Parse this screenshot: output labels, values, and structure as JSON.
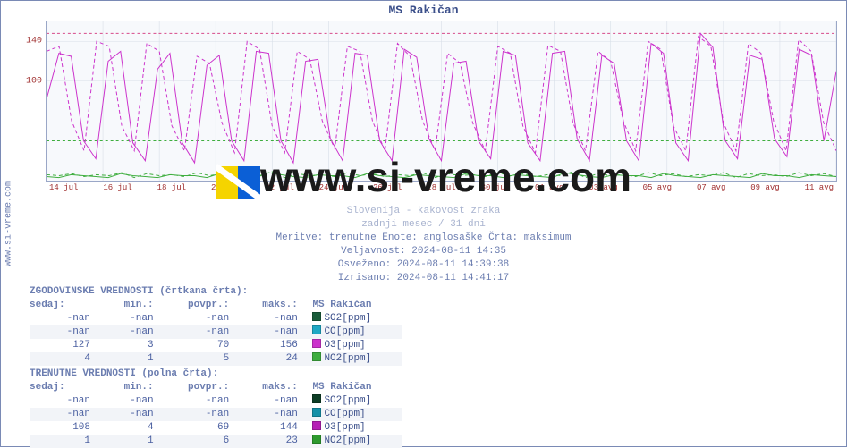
{
  "chart": {
    "title": "MS Rakičan",
    "type": "line",
    "background_color": "#f7f9fc",
    "grid_color": "#d8dee8",
    "border_color": "#9aa7c7",
    "x_tick_color": "#a03030",
    "y_tick_color": "#a03030",
    "ylim": [
      0,
      160
    ],
    "y_ticks": [
      100,
      140
    ],
    "x_ticks": [
      "14 jul",
      "16 jul",
      "18 jul",
      "20 jul",
      "22 jul",
      "24 jul",
      "26 jul",
      "28 jul",
      "30 jul",
      "01 avg",
      "03 avg",
      "05 avg",
      "07 avg",
      "09 avg",
      "11 avg"
    ],
    "threshold_lines": [
      {
        "value": 148,
        "color": "#d74a8a",
        "dash": "3,3"
      },
      {
        "value": 40,
        "color": "#3fae3f",
        "dash": "3,3"
      }
    ],
    "series": [
      {
        "name": "O3 hist",
        "color": "#cc33cc",
        "style": "dashed",
        "line_width": 1,
        "values": [
          130,
          135,
          60,
          30,
          140,
          135,
          55,
          30,
          138,
          130,
          55,
          30,
          125,
          118,
          58,
          28,
          140,
          132,
          55,
          28,
          130,
          122,
          60,
          32,
          135,
          130,
          60,
          30,
          138,
          125,
          60,
          30,
          128,
          118,
          58,
          30,
          135,
          128,
          55,
          28,
          136,
          130,
          58,
          30,
          130,
          120,
          60,
          30,
          140,
          132,
          55,
          30,
          145,
          135,
          58,
          30,
          138,
          128,
          60,
          30,
          142,
          130,
          58,
          30
        ]
      },
      {
        "name": "O3 now",
        "color": "#cc33cc",
        "style": "solid",
        "line_width": 1,
        "values": [
          82,
          128,
          125,
          40,
          22,
          120,
          130,
          38,
          20,
          112,
          128,
          38,
          18,
          116,
          126,
          40,
          20,
          130,
          128,
          40,
          18,
          120,
          122,
          42,
          20,
          128,
          126,
          40,
          20,
          132,
          124,
          42,
          20,
          118,
          120,
          40,
          22,
          130,
          126,
          38,
          20,
          128,
          130,
          42,
          20,
          126,
          118,
          40,
          20,
          138,
          128,
          38,
          20,
          148,
          134,
          40,
          22,
          126,
          122,
          42,
          24,
          132,
          126,
          40,
          110
        ]
      },
      {
        "name": "NO2 hist",
        "color": "#3fae3f",
        "style": "dashed",
        "line_width": 1,
        "values": [
          6,
          5,
          7,
          4,
          6,
          5,
          8,
          3,
          7,
          5,
          6,
          4,
          8,
          5,
          7,
          4,
          6,
          5,
          9,
          3,
          7,
          5,
          6,
          4,
          8,
          5,
          7,
          4,
          6,
          5,
          8,
          3,
          7,
          5,
          6,
          4,
          8,
          5,
          7,
          4,
          6,
          5,
          9,
          3,
          7,
          5,
          6,
          4,
          8,
          5,
          7,
          4,
          6,
          5,
          8,
          3,
          7,
          5,
          6,
          4,
          8,
          5,
          7,
          4
        ]
      },
      {
        "name": "NO2 now",
        "color": "#3fae3f",
        "style": "solid",
        "line_width": 1,
        "values": [
          4,
          3,
          6,
          5,
          4,
          3,
          7,
          5,
          4,
          3,
          6,
          5,
          5,
          3,
          7,
          5,
          4,
          3,
          8,
          6,
          4,
          3,
          6,
          5,
          5,
          3,
          7,
          5,
          4,
          3,
          6,
          5,
          4,
          3,
          7,
          5,
          5,
          3,
          6,
          5,
          4,
          3,
          8,
          6,
          4,
          3,
          6,
          5,
          5,
          3,
          7,
          5,
          4,
          3,
          6,
          5,
          4,
          3,
          7,
          5,
          5,
          3,
          6,
          5,
          4
        ]
      }
    ]
  },
  "side_label": "www.si-vreme.com",
  "watermark_text": "www.si-vreme.com",
  "meta": {
    "line1_a": "Slovenija",
    "line1_b": "kakovost zraka",
    "line2": "zadnji mesec / 31 dni",
    "line3": "Meritve: trenutne  Enote: anglosaške  Črta: maksimum",
    "valid_label": "Veljavnost:",
    "valid_value": "2024-08-11 14:35",
    "refresh_label": "Osveženo:",
    "refresh_value": "2024-08-11 14:39:38",
    "drawn_label": "Izrisano:",
    "drawn_value": "2024-08-11 14:41:17"
  },
  "tables": {
    "hist_title": "ZGODOVINSKE VREDNOSTI (črtkana črta):",
    "curr_title": "TRENUTNE VREDNOSTI (polna črta):",
    "headers": {
      "now": "sedaj:",
      "min": "min.:",
      "avg": "povpr.:",
      "max": "maks.:",
      "station": "MS Rakičan"
    },
    "hist_rows": [
      {
        "now": "-nan",
        "min": "-nan",
        "avg": "-nan",
        "max": "-nan",
        "param": "SO2[ppm]",
        "swatch": "#1a5c3a"
      },
      {
        "now": "-nan",
        "min": "-nan",
        "avg": "-nan",
        "max": "-nan",
        "param": "CO[ppm]",
        "swatch": "#1fa8c4"
      },
      {
        "now": "127",
        "min": "3",
        "avg": "70",
        "max": "156",
        "param": "O3[ppm]",
        "swatch": "#cc33cc"
      },
      {
        "now": "4",
        "min": "1",
        "avg": "5",
        "max": "24",
        "param": "NO2[ppm]",
        "swatch": "#3fae3f"
      }
    ],
    "curr_rows": [
      {
        "now": "-nan",
        "min": "-nan",
        "avg": "-nan",
        "max": "-nan",
        "param": "SO2[ppm]",
        "swatch": "#0d3d25"
      },
      {
        "now": "-nan",
        "min": "-nan",
        "avg": "-nan",
        "max": "-nan",
        "param": "CO[ppm]",
        "swatch": "#1591a8"
      },
      {
        "now": "108",
        "min": "4",
        "avg": "69",
        "max": "144",
        "param": "O3[ppm]",
        "swatch": "#b520b5"
      },
      {
        "now": "1",
        "min": "1",
        "avg": "6",
        "max": "23",
        "param": "NO2[ppm]",
        "swatch": "#2e9a2e"
      }
    ]
  }
}
